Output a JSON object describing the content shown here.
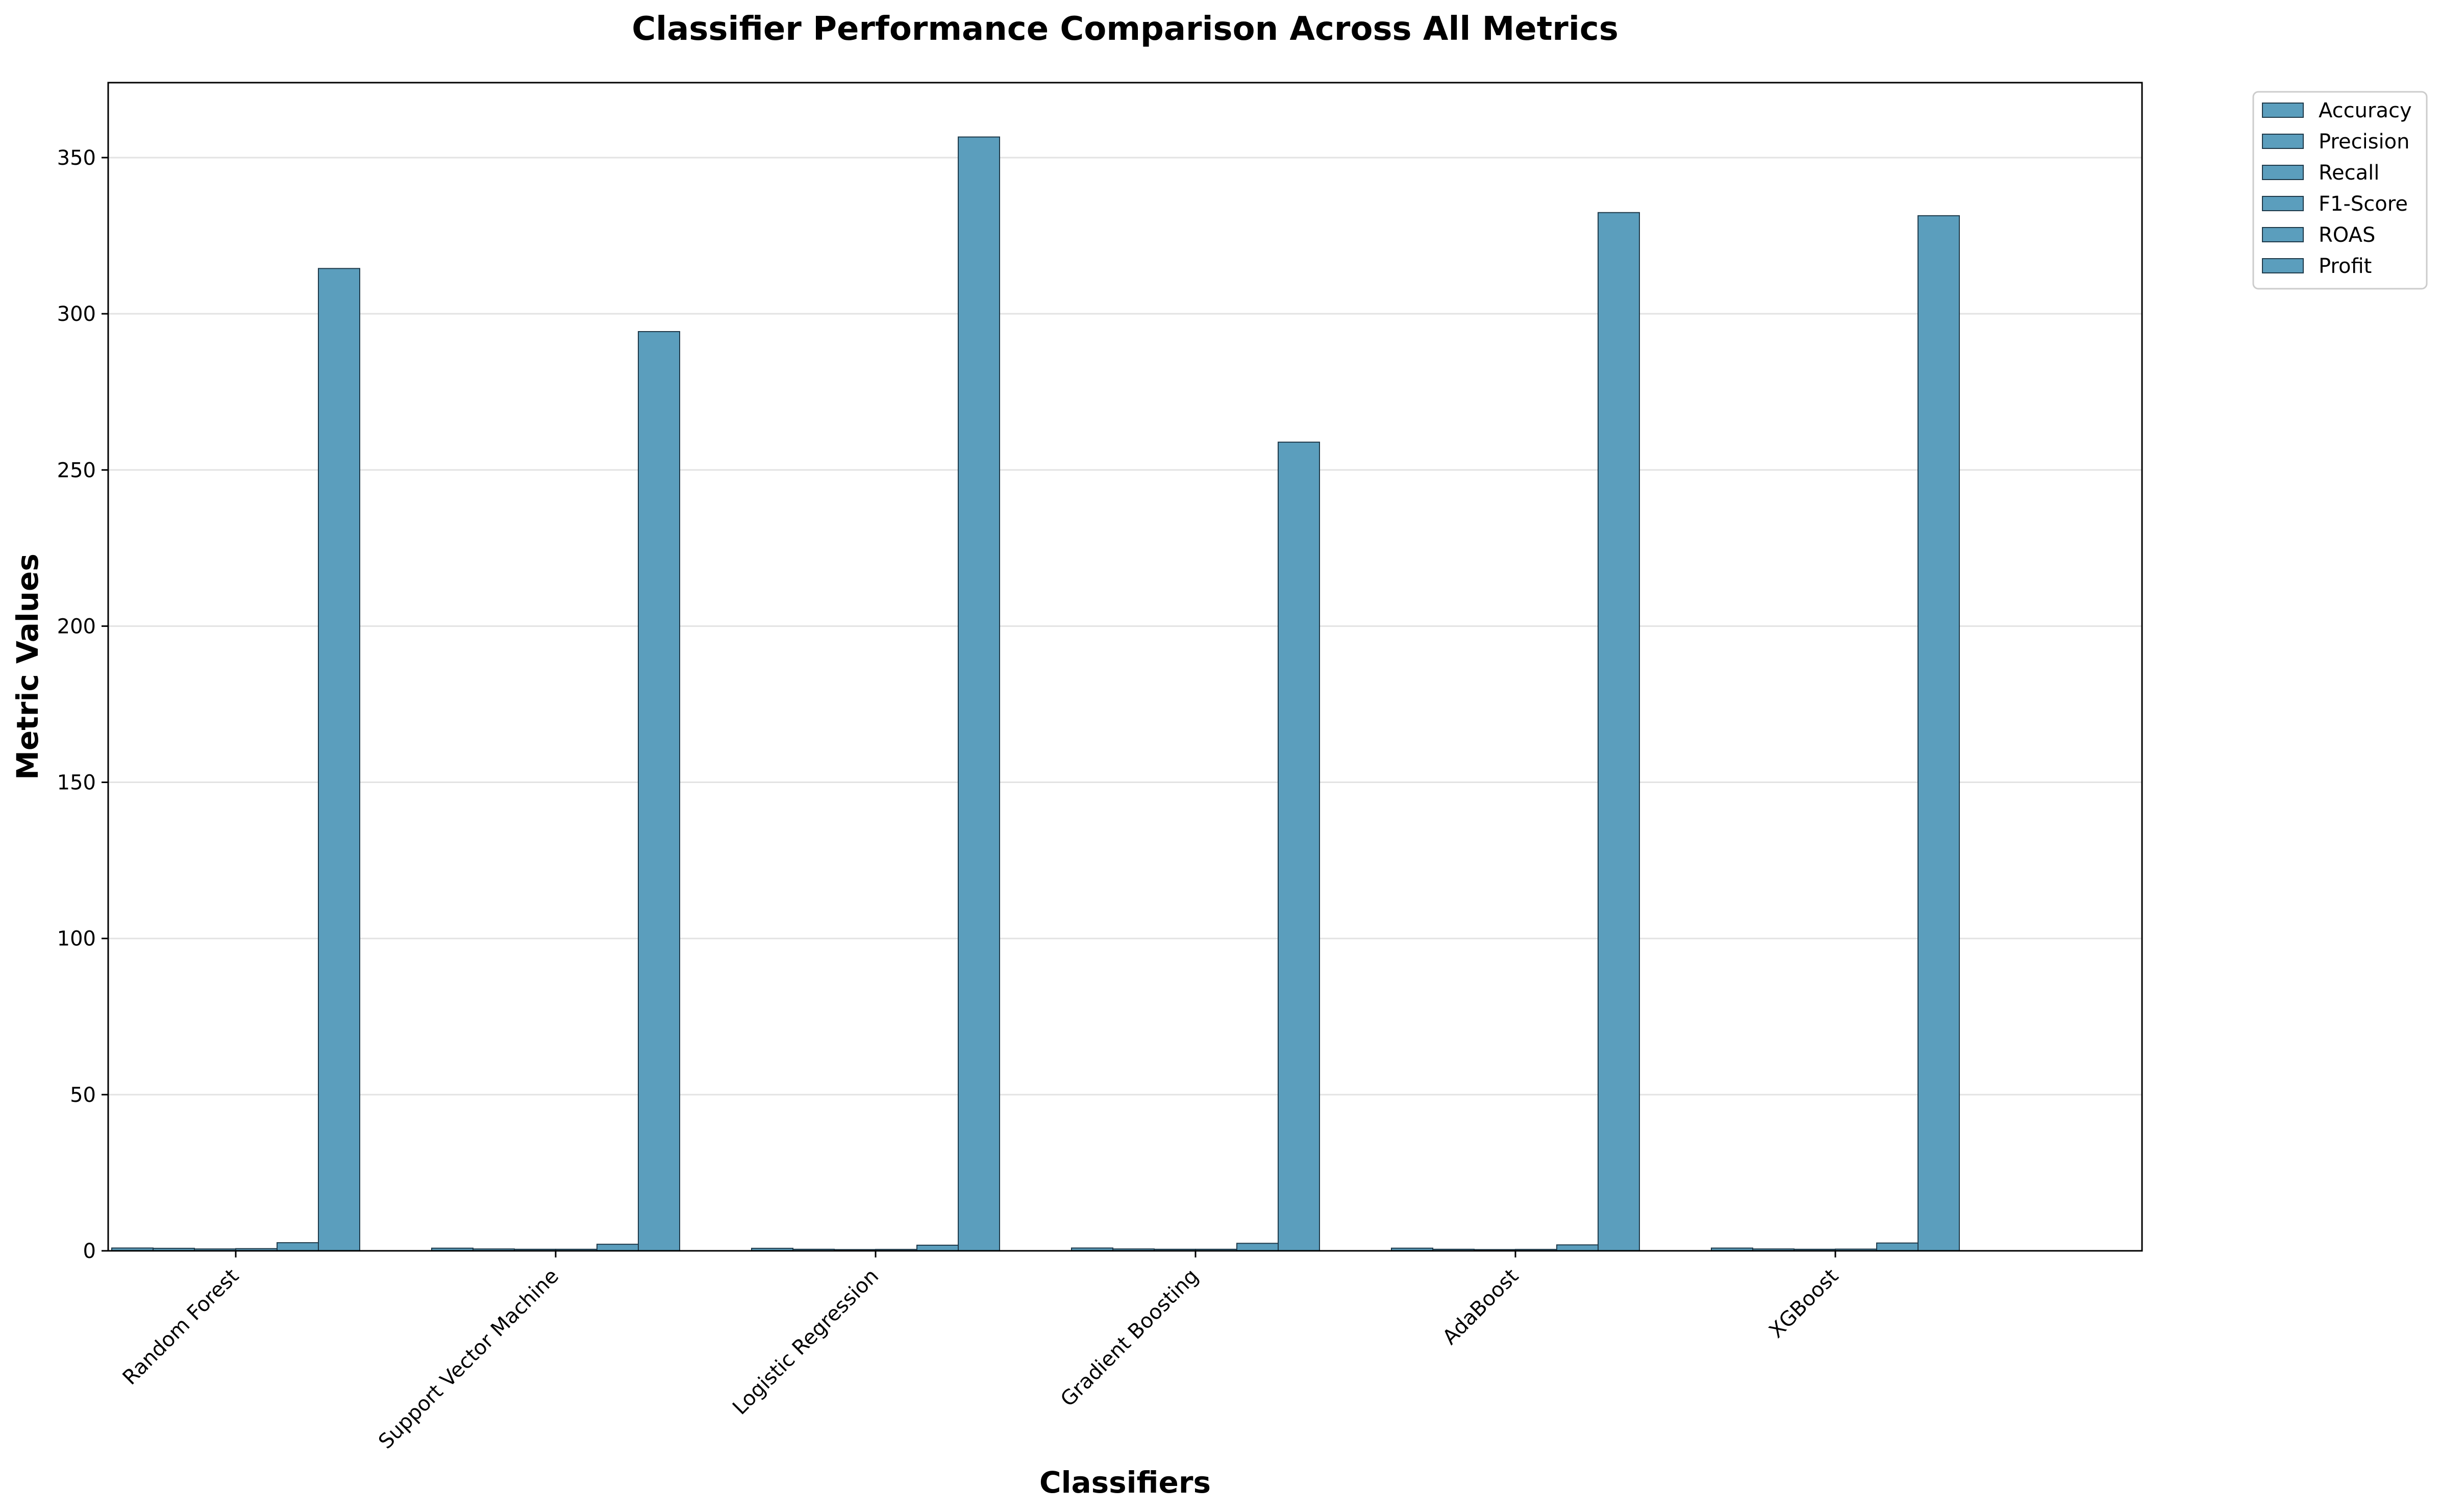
{
  "chart_data": {
    "type": "bar",
    "title": "Classifier Performance Comparison Across All Metrics",
    "xlabel": "Classifiers",
    "ylabel": "Metric Values",
    "categories": [
      "Random Forest",
      "Support Vector Machine",
      "Logistic Regression",
      "Gradient Boosting",
      "AdaBoost",
      "XGBoost"
    ],
    "series": [
      {
        "name": "Accuracy",
        "values": [
          0.9,
          0.85,
          0.8,
          0.9,
          0.85,
          0.88
        ]
      },
      {
        "name": "Precision",
        "values": [
          0.8,
          0.6,
          0.5,
          0.6,
          0.5,
          0.6
        ]
      },
      {
        "name": "Recall",
        "values": [
          0.6,
          0.5,
          0.4,
          0.5,
          0.4,
          0.5
        ]
      },
      {
        "name": "F1-Score",
        "values": [
          0.7,
          0.5,
          0.45,
          0.5,
          0.45,
          0.55
        ]
      },
      {
        "name": "ROAS",
        "values": [
          2.6,
          2.1,
          1.8,
          2.4,
          1.9,
          2.5
        ]
      },
      {
        "name": "Profit",
        "values": [
          314.5,
          294.3,
          356.6,
          258.9,
          332.4,
          331.4
        ]
      }
    ],
    "yticks": [
      0,
      50,
      100,
      150,
      200,
      250,
      300,
      350
    ],
    "ylim": [
      0,
      374
    ],
    "grid": "y",
    "legend": "outside-top-right",
    "bar_color": "#5b9ebd",
    "bar_edge_color": "#1f3a4a"
  }
}
